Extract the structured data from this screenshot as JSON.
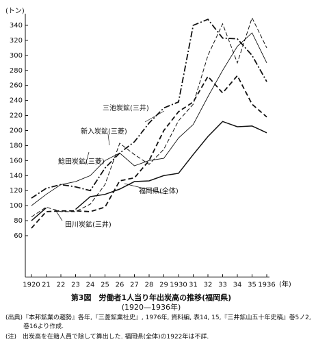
{
  "chart_data": {
    "type": "line",
    "title": "第3図　労働者1人当り年出炭高の推移(福岡県)",
    "subtitle": "(1920—1936年)",
    "y_label": "(トン)",
    "x_label": "(年)",
    "categories": [
      "1920",
      "21",
      "22",
      "23",
      "24",
      "25",
      "26",
      "27",
      "28",
      "29",
      "1930",
      "31",
      "32",
      "33",
      "34",
      "35",
      "1936"
    ],
    "ylim": [
      5,
      350
    ],
    "yticks": [
      60,
      80,
      100,
      120,
      140,
      160,
      180,
      200,
      220,
      240,
      260,
      280,
      300,
      320,
      340
    ],
    "series": [
      {
        "name": "三池炭鉱(三井)",
        "color": "#111111",
        "dash": "9 3 2 3",
        "width": 1.8,
        "values": [
          110,
          123,
          128,
          125,
          120,
          150,
          170,
          185,
          210,
          230,
          238,
          340,
          348,
          323,
          322,
          300,
          265
        ]
      },
      {
        "name": "新入炭鉱(三菱)",
        "color": "#111111",
        "dash": "6 3",
        "width": 1.0,
        "values": [
          85,
          98,
          92,
          92,
          102,
          128,
          183,
          168,
          155,
          175,
          213,
          235,
          300,
          342,
          290,
          350,
          310
        ]
      },
      {
        "name": "鯰田炭鉱(三菱)",
        "color": "#111111",
        "dash": "",
        "width": 0.9,
        "values": [
          100,
          115,
          128,
          132,
          140,
          160,
          170,
          153,
          160,
          163,
          190,
          208,
          245,
          280,
          312,
          330,
          290
        ]
      },
      {
        "name": "福岡県(全体)",
        "color": "#111111",
        "dash": "",
        "width": 1.5,
        "values": [
          80,
          97,
          null,
          95,
          112,
          115,
          122,
          132,
          133,
          140,
          143,
          168,
          192,
          212,
          205,
          206,
          197
        ]
      },
      {
        "name": "田川炭鉱(三井)",
        "color": "#111111",
        "dash": "7 4",
        "width": 1.8,
        "values": [
          70,
          92,
          93,
          93,
          92,
          98,
          133,
          137,
          160,
          200,
          225,
          238,
          272,
          250,
          273,
          235,
          218
        ]
      }
    ],
    "notes": [
      "(出典)『本邦鉱業の趨勢』各年,『三菱鉱業社史』, 1976年, 資料編, 表14, 15,『三井鉱山五十年史稿』巻5ノ2, 巻16より作成.",
      "(注)　出炭高を在籍人員で除して算出した. 福岡県(全体)の1922年は不詳."
    ]
  }
}
